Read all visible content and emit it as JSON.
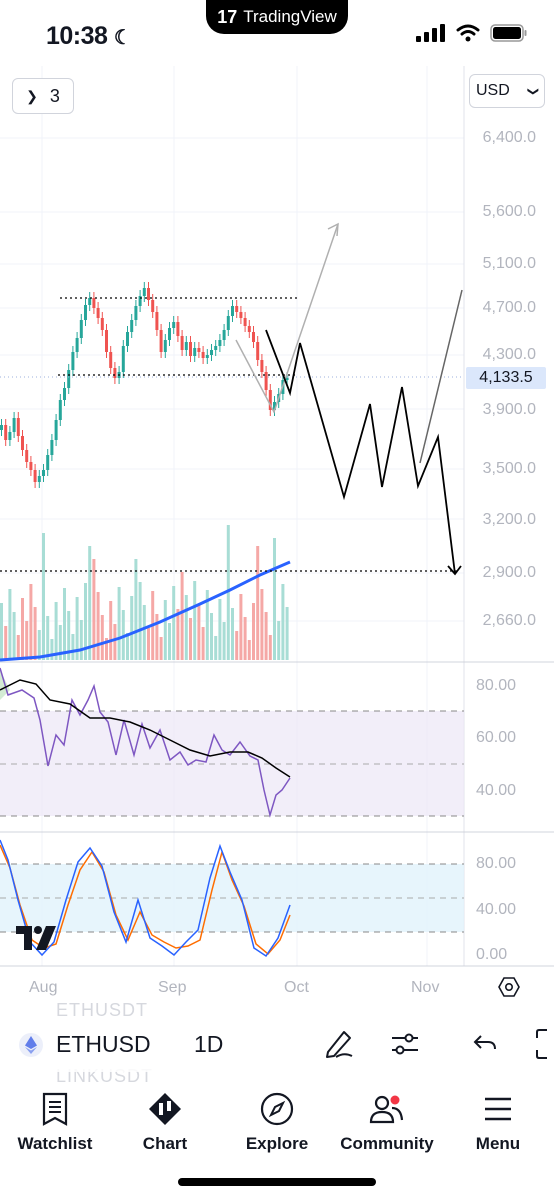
{
  "status_bar": {
    "time": "10:38",
    "app_pill": "TradingView"
  },
  "chart": {
    "interval_count": "3",
    "currency": "USD",
    "price_axis": [
      "6,400.0",
      "5,600.0",
      "5,100.0",
      "4,700.0",
      "4,300.0",
      "3,900.0",
      "3,500.0",
      "3,200.0",
      "2,900.0",
      "2,660.0"
    ],
    "current_price": "4,133.5",
    "rsi_axis": [
      "80.00",
      "60.00",
      "40.00"
    ],
    "stoch_axis": [
      "80.00",
      "40.00",
      "0.00"
    ],
    "time_axis": [
      "Aug",
      "Sep",
      "Oct",
      "Nov"
    ],
    "colors": {
      "up": "#26a69a",
      "down": "#ef5350",
      "ma": "#2962ff",
      "rsi": "#7e57c2",
      "stoch_k": "#2962ff",
      "stoch_d": "#ff6d00",
      "price_badge": "#dbe7fb"
    }
  },
  "symbol_bar": {
    "ghost_above": "ETHUSDT",
    "symbol": "ETHUSD",
    "interval": "1D",
    "ghost_below": "LINKUSDT"
  },
  "tabs": [
    {
      "label": "Watchlist",
      "icon": "watchlist-icon"
    },
    {
      "label": "Chart",
      "icon": "chart-icon"
    },
    {
      "label": "Explore",
      "icon": "compass-icon"
    },
    {
      "label": "Community",
      "icon": "community-icon"
    },
    {
      "label": "Menu",
      "icon": "menu-icon"
    }
  ]
}
